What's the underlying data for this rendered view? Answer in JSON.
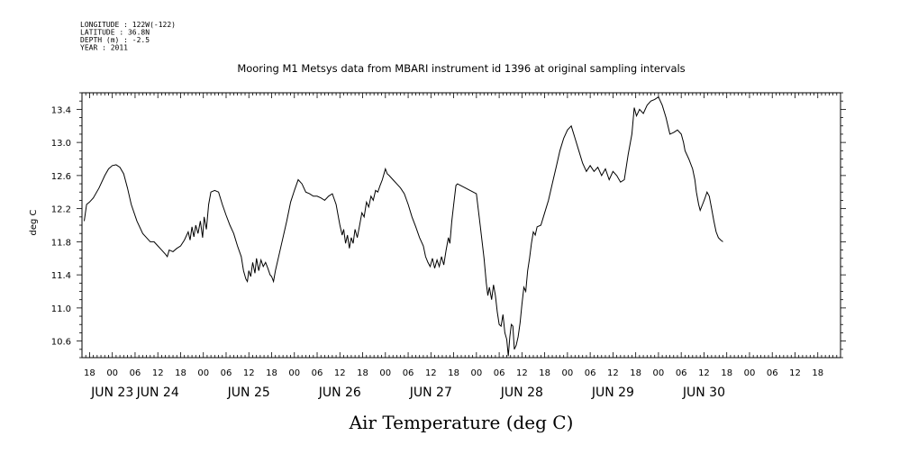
{
  "header": {
    "meta_lines": [
      "LONGITUDE : 122W(-122)",
      "LATITUDE : 36.8N",
      "DEPTH (m) : -2.5",
      "YEAR : 2011"
    ]
  },
  "chart_data": {
    "type": "line",
    "title": "Mooring M1 Metsys data from MBARI instrument id 1396 at original sampling intervals",
    "xlabel": "Air Temperature (deg C)",
    "ylabel": "deg C",
    "x_units": "hours from 2011-06-22 16:00",
    "xlim": [
      0,
      200
    ],
    "ylim": [
      10.4,
      13.6
    ],
    "y_ticks": [
      10.6,
      11.0,
      11.4,
      11.8,
      12.2,
      12.6,
      13.0,
      13.4
    ],
    "y_tick_labels": [
      "10.6",
      "11.0",
      "11.4",
      "11.8",
      "12.2",
      "12.6",
      "13.0",
      "13.4"
    ],
    "x_hour_labels": [
      {
        "x": 2,
        "label": "18"
      },
      {
        "x": 8,
        "label": "00"
      },
      {
        "x": 14,
        "label": "06"
      },
      {
        "x": 20,
        "label": "12"
      },
      {
        "x": 26,
        "label": "18"
      },
      {
        "x": 32,
        "label": "00"
      },
      {
        "x": 38,
        "label": "06"
      },
      {
        "x": 44,
        "label": "12"
      },
      {
        "x": 50,
        "label": "18"
      },
      {
        "x": 56,
        "label": "00"
      },
      {
        "x": 62,
        "label": "06"
      },
      {
        "x": 68,
        "label": "12"
      },
      {
        "x": 74,
        "label": "18"
      },
      {
        "x": 80,
        "label": "00"
      },
      {
        "x": 86,
        "label": "06"
      },
      {
        "x": 92,
        "label": "12"
      },
      {
        "x": 98,
        "label": "18"
      },
      {
        "x": 104,
        "label": "00"
      },
      {
        "x": 110,
        "label": "06"
      },
      {
        "x": 116,
        "label": "12"
      },
      {
        "x": 122,
        "label": "18"
      },
      {
        "x": 128,
        "label": "00"
      },
      {
        "x": 134,
        "label": "06"
      },
      {
        "x": 140,
        "label": "12"
      },
      {
        "x": 146,
        "label": "18"
      },
      {
        "x": 152,
        "label": "00"
      },
      {
        "x": 158,
        "label": "06"
      },
      {
        "x": 164,
        "label": "12"
      },
      {
        "x": 170,
        "label": "18"
      },
      {
        "x": 176,
        "label": "00"
      },
      {
        "x": 182,
        "label": "06"
      },
      {
        "x": 188,
        "label": "12"
      },
      {
        "x": 194,
        "label": "18"
      }
    ],
    "x_day_labels": [
      {
        "x": 8,
        "label": "JUN 23"
      },
      {
        "x": 20,
        "label": "JUN 24"
      },
      {
        "x": 44,
        "label": "JUN 25"
      },
      {
        "x": 68,
        "label": "JUN 26"
      },
      {
        "x": 92,
        "label": "JUN 27"
      },
      {
        "x": 116,
        "label": "JUN 28"
      },
      {
        "x": 140,
        "label": "JUN 29"
      },
      {
        "x": 164,
        "label": "JUN 30"
      }
    ],
    "series": [
      {
        "color": "#000000",
        "points": [
          [
            0.6,
            12.05
          ],
          [
            1.2,
            12.25
          ],
          [
            2,
            12.28
          ],
          [
            3,
            12.33
          ],
          [
            4.5,
            12.45
          ],
          [
            6,
            12.6
          ],
          [
            7,
            12.68
          ],
          [
            8,
            12.72
          ],
          [
            9,
            12.73
          ],
          [
            10,
            12.7
          ],
          [
            11,
            12.62
          ],
          [
            12,
            12.45
          ],
          [
            13,
            12.25
          ],
          [
            14.5,
            12.05
          ],
          [
            16,
            11.9
          ],
          [
            17,
            11.85
          ],
          [
            18,
            11.8
          ],
          [
            19,
            11.8
          ],
          [
            20,
            11.75
          ],
          [
            21,
            11.7
          ],
          [
            22,
            11.65
          ],
          [
            22.5,
            11.62
          ],
          [
            23,
            11.7
          ],
          [
            24,
            11.68
          ],
          [
            25,
            11.72
          ],
          [
            26,
            11.75
          ],
          [
            27,
            11.82
          ],
          [
            28,
            11.92
          ],
          [
            28.5,
            11.82
          ],
          [
            29,
            11.98
          ],
          [
            29.5,
            11.86
          ],
          [
            30,
            12.0
          ],
          [
            30.6,
            11.9
          ],
          [
            31.2,
            12.05
          ],
          [
            31.8,
            11.85
          ],
          [
            32.2,
            12.1
          ],
          [
            32.8,
            11.95
          ],
          [
            33.4,
            12.25
          ],
          [
            34,
            12.4
          ],
          [
            35,
            12.42
          ],
          [
            36,
            12.4
          ],
          [
            37,
            12.25
          ],
          [
            38,
            12.12
          ],
          [
            39,
            12.0
          ],
          [
            40,
            11.9
          ],
          [
            41,
            11.75
          ],
          [
            42,
            11.62
          ],
          [
            42.6,
            11.45
          ],
          [
            43.2,
            11.35
          ],
          [
            43.6,
            11.32
          ],
          [
            44,
            11.45
          ],
          [
            44.5,
            11.38
          ],
          [
            45,
            11.55
          ],
          [
            45.6,
            11.42
          ],
          [
            46,
            11.6
          ],
          [
            46.6,
            11.45
          ],
          [
            47.2,
            11.58
          ],
          [
            47.8,
            11.5
          ],
          [
            48.4,
            11.55
          ],
          [
            49,
            11.48
          ],
          [
            49.6,
            11.4
          ],
          [
            50,
            11.38
          ],
          [
            50.5,
            11.32
          ],
          [
            51,
            11.45
          ],
          [
            52,
            11.65
          ],
          [
            53,
            11.85
          ],
          [
            54,
            12.05
          ],
          [
            55,
            12.28
          ],
          [
            56,
            12.42
          ],
          [
            57,
            12.55
          ],
          [
            58,
            12.5
          ],
          [
            59,
            12.4
          ],
          [
            60,
            12.38
          ],
          [
            61,
            12.35
          ],
          [
            62,
            12.35
          ],
          [
            63,
            12.33
          ],
          [
            64,
            12.3
          ],
          [
            65,
            12.35
          ],
          [
            66,
            12.38
          ],
          [
            67,
            12.25
          ],
          [
            67.6,
            12.1
          ],
          [
            68,
            12.0
          ],
          [
            68.6,
            11.88
          ],
          [
            69,
            11.95
          ],
          [
            69.5,
            11.78
          ],
          [
            70,
            11.88
          ],
          [
            70.5,
            11.72
          ],
          [
            71,
            11.85
          ],
          [
            71.5,
            11.78
          ],
          [
            72,
            11.95
          ],
          [
            72.6,
            11.85
          ],
          [
            73.2,
            12.0
          ],
          [
            73.8,
            12.15
          ],
          [
            74.4,
            12.1
          ],
          [
            75,
            12.28
          ],
          [
            75.6,
            12.22
          ],
          [
            76.2,
            12.35
          ],
          [
            76.8,
            12.3
          ],
          [
            77.4,
            12.42
          ],
          [
            78,
            12.4
          ],
          [
            78.6,
            12.48
          ],
          [
            79.2,
            12.55
          ],
          [
            80,
            12.68
          ],
          [
            80.5,
            12.62
          ],
          [
            81,
            12.6
          ],
          [
            82,
            12.55
          ],
          [
            83,
            12.5
          ],
          [
            84,
            12.45
          ],
          [
            85,
            12.38
          ],
          [
            86,
            12.25
          ],
          [
            87,
            12.1
          ],
          [
            88,
            11.98
          ],
          [
            89,
            11.85
          ],
          [
            90,
            11.75
          ],
          [
            90.6,
            11.62
          ],
          [
            91.2,
            11.55
          ],
          [
            91.8,
            11.5
          ],
          [
            92.4,
            11.6
          ],
          [
            93,
            11.48
          ],
          [
            93.6,
            11.58
          ],
          [
            94.2,
            11.5
          ],
          [
            94.8,
            11.62
          ],
          [
            95.4,
            11.52
          ],
          [
            96,
            11.7
          ],
          [
            96.6,
            11.85
          ],
          [
            97,
            11.78
          ],
          [
            97.5,
            12.05
          ],
          [
            98,
            12.25
          ],
          [
            98.6,
            12.48
          ],
          [
            99,
            12.5
          ],
          [
            104,
            12.38
          ],
          [
            105,
            12.0
          ],
          [
            106,
            11.6
          ],
          [
            106.6,
            11.3
          ],
          [
            107,
            11.15
          ],
          [
            107.4,
            11.25
          ],
          [
            108,
            11.1
          ],
          [
            108.5,
            11.28
          ],
          [
            109,
            11.15
          ],
          [
            109.5,
            10.95
          ],
          [
            110,
            10.8
          ],
          [
            110.5,
            10.78
          ],
          [
            111,
            10.92
          ],
          [
            111.5,
            10.7
          ],
          [
            112,
            10.62
          ],
          [
            112.4,
            10.42
          ],
          [
            112.8,
            10.65
          ],
          [
            113.2,
            10.8
          ],
          [
            113.6,
            10.78
          ],
          [
            114,
            10.5
          ],
          [
            114.5,
            10.55
          ],
          [
            115,
            10.65
          ],
          [
            115.5,
            10.82
          ],
          [
            116,
            11.05
          ],
          [
            116.5,
            11.25
          ],
          [
            117,
            11.2
          ],
          [
            117.5,
            11.45
          ],
          [
            118,
            11.6
          ],
          [
            118.5,
            11.78
          ],
          [
            119,
            11.92
          ],
          [
            119.5,
            11.88
          ],
          [
            120,
            11.98
          ],
          [
            121,
            12.0
          ],
          [
            122,
            12.15
          ],
          [
            123,
            12.3
          ],
          [
            124,
            12.5
          ],
          [
            125,
            12.7
          ],
          [
            126,
            12.9
          ],
          [
            127,
            13.05
          ],
          [
            128,
            13.15
          ],
          [
            129,
            13.2
          ],
          [
            130,
            13.05
          ],
          [
            131,
            12.9
          ],
          [
            132,
            12.75
          ],
          [
            133,
            12.65
          ],
          [
            134,
            12.72
          ],
          [
            135,
            12.65
          ],
          [
            136,
            12.7
          ],
          [
            137,
            12.6
          ],
          [
            138,
            12.68
          ],
          [
            139,
            12.55
          ],
          [
            140,
            12.65
          ],
          [
            141,
            12.6
          ],
          [
            142,
            12.52
          ],
          [
            143,
            12.55
          ],
          [
            144,
            12.85
          ],
          [
            145,
            13.1
          ],
          [
            145.6,
            13.42
          ],
          [
            146.2,
            13.32
          ],
          [
            147,
            13.4
          ],
          [
            148,
            13.35
          ],
          [
            149,
            13.45
          ],
          [
            150,
            13.5
          ],
          [
            151,
            13.52
          ],
          [
            152,
            13.55
          ],
          [
            153,
            13.45
          ],
          [
            154,
            13.3
          ],
          [
            155,
            13.1
          ],
          [
            156,
            13.12
          ],
          [
            157,
            13.15
          ],
          [
            158,
            13.1
          ],
          [
            158.6,
            13.0
          ],
          [
            159,
            12.9
          ],
          [
            160,
            12.8
          ],
          [
            161,
            12.68
          ],
          [
            161.6,
            12.55
          ],
          [
            162,
            12.4
          ],
          [
            162.6,
            12.25
          ],
          [
            163,
            12.18
          ],
          [
            163.6,
            12.25
          ],
          [
            164.2,
            12.32
          ],
          [
            164.8,
            12.4
          ],
          [
            165.4,
            12.35
          ],
          [
            166,
            12.2
          ],
          [
            166.6,
            12.05
          ],
          [
            167.2,
            11.92
          ],
          [
            167.8,
            11.85
          ],
          [
            168.4,
            11.82
          ],
          [
            169,
            11.8
          ]
        ]
      }
    ]
  }
}
